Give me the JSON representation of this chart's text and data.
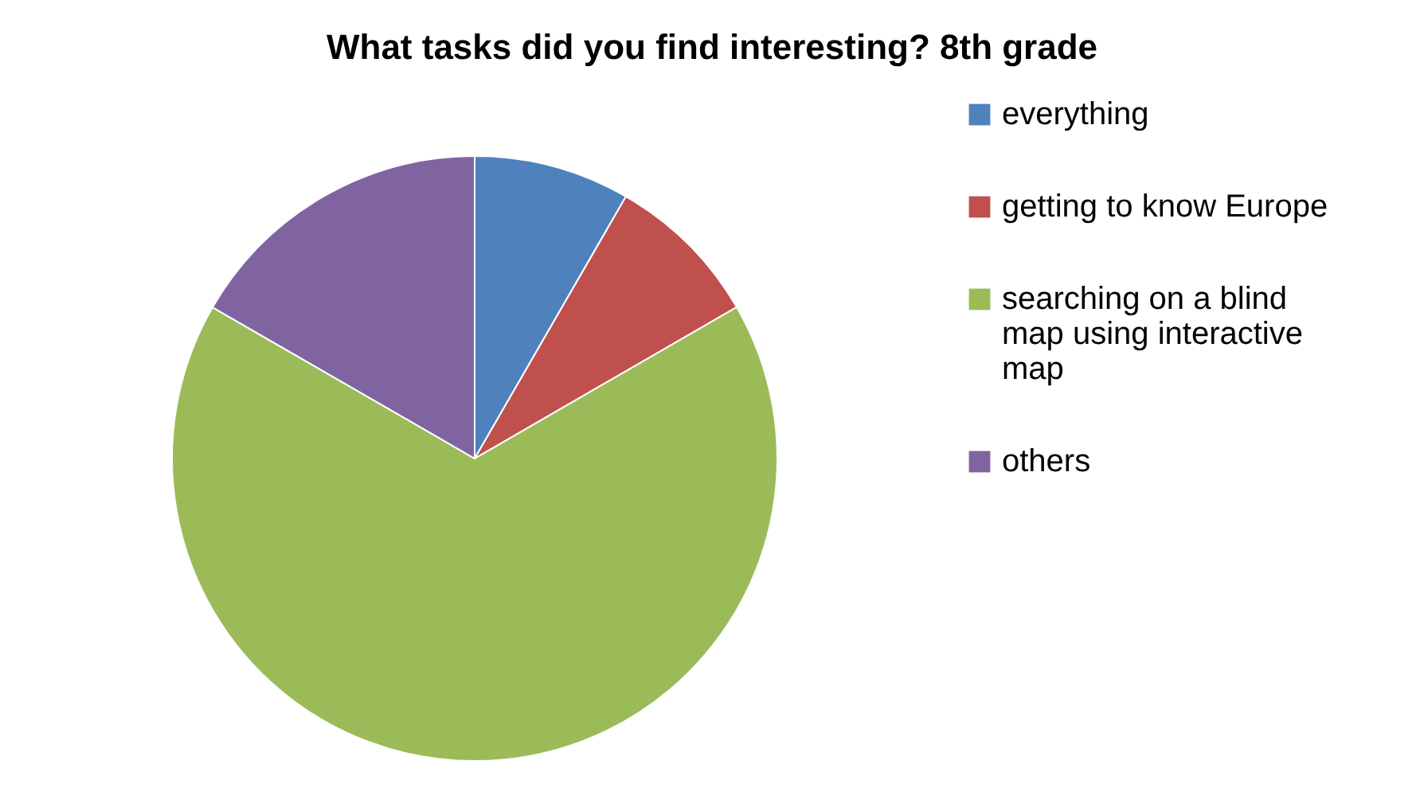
{
  "chart_data": {
    "type": "pie",
    "title": "What tasks did you find interesting? 8th grade",
    "categories": [
      "everything",
      "getting to know Europe",
      "searching on a blind map using interactive map",
      "others"
    ],
    "values": [
      8.33,
      8.33,
      66.67,
      16.67
    ],
    "colors": [
      "#4f81bd",
      "#c0504d",
      "#9bbb59",
      "#8064a2"
    ],
    "legend": "right"
  }
}
